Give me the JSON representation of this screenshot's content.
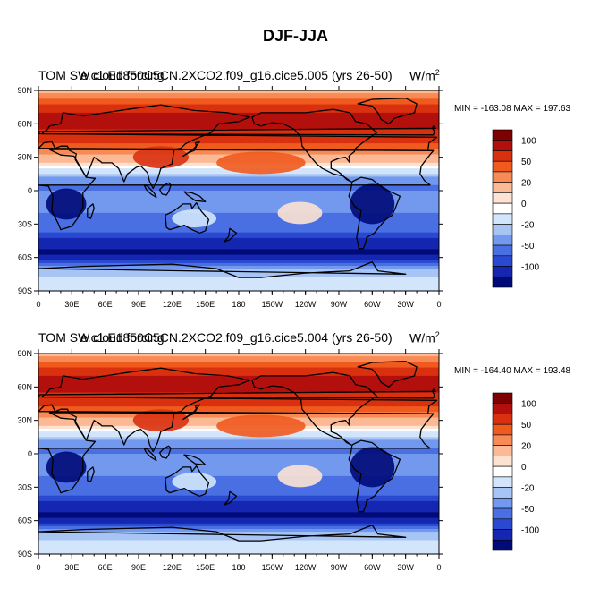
{
  "title": "DJF-JJA",
  "panels": [
    {
      "variable_label": "TOM SW cloud forcing",
      "case_label": "e.c1.E1850C5CN.2XCO2.f09_g16.cice5.005 (yrs 26-50)",
      "units_base": "W/m",
      "units_exp": "2",
      "minmax": "MIN = -163.08 MAX = 197.63"
    },
    {
      "variable_label": "TOM SW cloud forcing",
      "case_label": "e.c1.E1850C5CN.2XCO2.f09_g16.cice5.004 (yrs 26-50)",
      "units_base": "W/m",
      "units_exp": "2",
      "minmax": "MIN = -164.40 MAX = 193.48"
    }
  ],
  "lon_ticks": [
    "0",
    "30E",
    "60E",
    "90E",
    "120E",
    "150E",
    "180",
    "150W",
    "120W",
    "90W",
    "60W",
    "30W",
    "0"
  ],
  "lat_ticks": [
    "90N",
    "60N",
    "30N",
    "0",
    "30S",
    "60S",
    "90S"
  ],
  "colorbar": {
    "labels": [
      "100",
      "50",
      "20",
      "0",
      "-20",
      "-50",
      "-100"
    ],
    "colors": [
      "#7f0000",
      "#b3100d",
      "#d9310f",
      "#f05a1e",
      "#f88a56",
      "#fbb995",
      "#fde2d2",
      "#ffffff",
      "#d2e5fb",
      "#a6c4f4",
      "#7299ee",
      "#4a6fe3",
      "#2a49d1",
      "#1527b0",
      "#000a78"
    ]
  }
}
